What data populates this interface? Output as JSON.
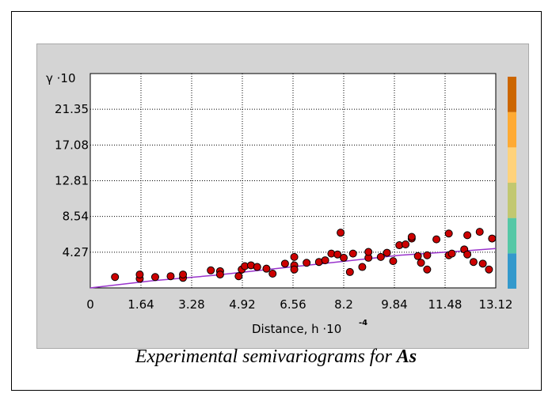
{
  "chart_data": {
    "type": "scatter",
    "title": "",
    "ylabel": "γ ·10",
    "xlabel": "Distance, h ·10",
    "xlabel_exponent": "-4",
    "xlim": [
      0,
      13.12
    ],
    "ylim": [
      0,
      25.62
    ],
    "x_ticks": [
      "0",
      "1.64",
      "3.28",
      "4.92",
      "6.56",
      "8.2",
      "9.84",
      "11.48",
      "13.12"
    ],
    "y_ticks": [
      "4.27",
      "8.54",
      "12.81",
      "17.08",
      "21.35"
    ],
    "grid": true,
    "colorbar": [
      "#3399cc",
      "#55c8a6",
      "#c2c870",
      "#ffd27a",
      "#ffaa33",
      "#cc6600"
    ],
    "series": [
      {
        "marker_color": "#cc0000",
        "points": [
          [
            0.8,
            1.3
          ],
          [
            1.6,
            1.1
          ],
          [
            1.6,
            1.6
          ],
          [
            2.1,
            1.3
          ],
          [
            2.6,
            1.4
          ],
          [
            3.0,
            1.2
          ],
          [
            3.0,
            1.6
          ],
          [
            3.9,
            2.1
          ],
          [
            4.2,
            2.0
          ],
          [
            4.2,
            1.6
          ],
          [
            4.8,
            1.4
          ],
          [
            4.9,
            2.2
          ],
          [
            5.0,
            2.6
          ],
          [
            5.2,
            2.7
          ],
          [
            5.4,
            2.5
          ],
          [
            5.7,
            2.3
          ],
          [
            5.9,
            1.7
          ],
          [
            6.3,
            2.9
          ],
          [
            6.6,
            2.7
          ],
          [
            6.6,
            2.2
          ],
          [
            6.6,
            3.7
          ],
          [
            7.0,
            3.0
          ],
          [
            7.4,
            3.1
          ],
          [
            7.6,
            3.3
          ],
          [
            7.8,
            4.1
          ],
          [
            8.0,
            4.0
          ],
          [
            8.2,
            3.6
          ],
          [
            8.4,
            1.9
          ],
          [
            8.5,
            4.1
          ],
          [
            8.8,
            2.5
          ],
          [
            9.0,
            3.6
          ],
          [
            9.0,
            4.3
          ],
          [
            9.4,
            3.7
          ],
          [
            9.6,
            4.2
          ],
          [
            9.8,
            3.2
          ],
          [
            10.0,
            5.1
          ],
          [
            10.2,
            5.2
          ],
          [
            10.4,
            5.9
          ],
          [
            10.4,
            6.1
          ],
          [
            10.6,
            3.8
          ],
          [
            10.7,
            3.0
          ],
          [
            10.9,
            2.2
          ],
          [
            10.9,
            3.9
          ],
          [
            11.2,
            5.8
          ],
          [
            11.6,
            3.9
          ],
          [
            11.6,
            6.5
          ],
          [
            11.7,
            4.1
          ],
          [
            12.1,
            4.6
          ],
          [
            12.2,
            6.3
          ],
          [
            12.2,
            4.0
          ],
          [
            12.4,
            3.1
          ],
          [
            12.6,
            6.7
          ],
          [
            12.7,
            2.9
          ],
          [
            12.9,
            2.2
          ],
          [
            13.0,
            5.9
          ],
          [
            8.1,
            6.6
          ]
        ]
      }
    ],
    "model_line": {
      "color": "#9933cc",
      "points": [
        [
          0,
          0
        ],
        [
          2,
          0.85
        ],
        [
          4,
          1.5
        ],
        [
          6,
          2.3
        ],
        [
          8,
          3.1
        ],
        [
          10,
          3.9
        ],
        [
          12,
          4.4
        ],
        [
          13.12,
          4.7
        ]
      ]
    }
  },
  "caption": {
    "text": "Experimental semivariograms for ",
    "element": "As"
  }
}
